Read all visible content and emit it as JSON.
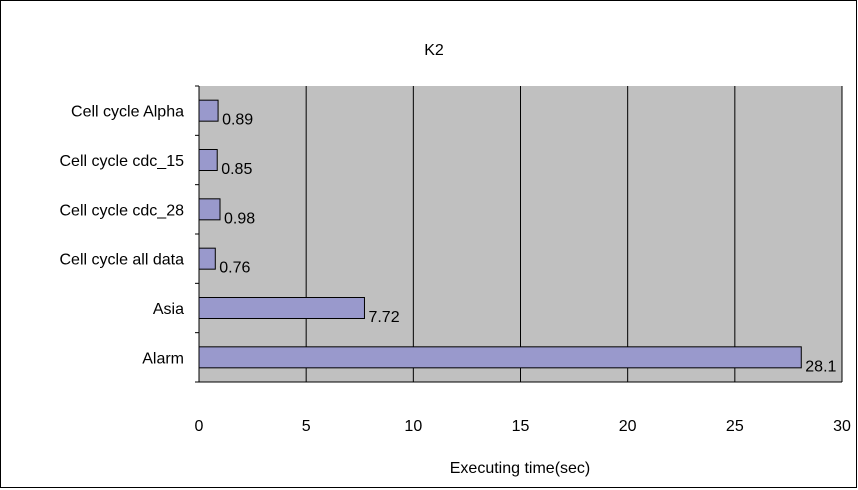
{
  "chart_data": {
    "type": "bar",
    "orientation": "horizontal",
    "title": "K2",
    "xlabel": "Executing time(sec)",
    "ylabel": "",
    "categories": [
      "Cell cycle Alpha",
      "Cell cycle cdc_15",
      "Cell cycle cdc_28",
      "Cell cycle all data",
      "Asia",
      "Alarm"
    ],
    "values": [
      0.89,
      0.85,
      0.98,
      0.76,
      7.72,
      28.1
    ],
    "data_labels": [
      "0.89",
      "0.85",
      "0.98",
      "0.76",
      "7.72",
      "28.1"
    ],
    "xlim": [
      0,
      30
    ],
    "xticks": [
      "0",
      "5",
      "10",
      "15",
      "20",
      "25",
      "30"
    ],
    "grid": "vertical major gridlines",
    "legend": "none",
    "colors": {
      "bar_fill": "#9999cc",
      "plot_area": "#c0c0c0",
      "gridline": "#000000"
    }
  }
}
